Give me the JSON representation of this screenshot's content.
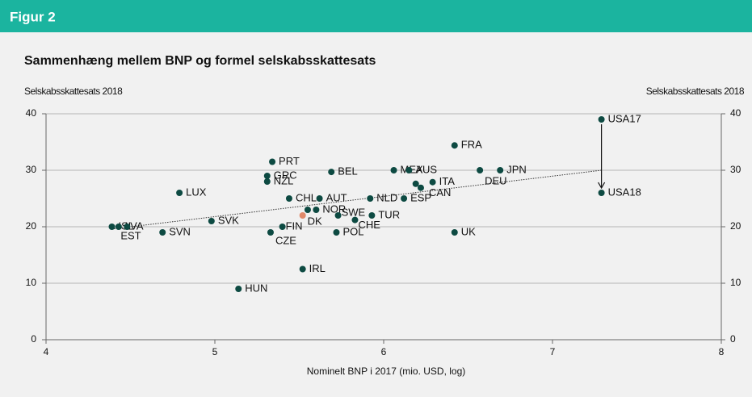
{
  "header": {
    "label": "Figur 2"
  },
  "chart_data": {
    "type": "scatter",
    "title": "Sammenhæng mellem BNP og formel selskabsskattesats",
    "y_label": "Selskabsskattesats 2018",
    "y2_label": "Selskabsskattesats 2018",
    "x_label": "Nominelt BNP i 2017 (mio. USD, log)",
    "xlim": [
      4,
      8
    ],
    "xticks": [
      4,
      5,
      6,
      7,
      8
    ],
    "ylim": [
      0,
      40
    ],
    "yticks": [
      0,
      10,
      20,
      30,
      40
    ],
    "y2lim": [
      0,
      40
    ],
    "y2ticks": [
      0,
      10,
      20,
      30,
      40
    ],
    "grid": true,
    "color": "#0d4a42",
    "labels": [
      "ISL",
      "LVA",
      "EST",
      "SVN",
      "SVK",
      "LUX",
      "HUN",
      "PRT",
      "GRC",
      "NZL",
      "CZE",
      "FIN",
      "CHL",
      "DK",
      "IRL",
      null,
      "NOR",
      "AUT",
      "BEL",
      "SWE",
      "POL",
      "CHE",
      "NLD",
      "TUR",
      "MEX",
      "AUS",
      "ESP",
      null,
      "CAN",
      "ITA",
      "FRA",
      "UK",
      "DEU",
      "JPN",
      "USA17",
      "USA18"
    ],
    "x": [
      4.39,
      4.43,
      4.48,
      4.69,
      4.98,
      4.79,
      5.14,
      5.34,
      5.31,
      5.31,
      5.33,
      5.4,
      5.44,
      5.52,
      5.52,
      5.55,
      5.6,
      5.62,
      5.69,
      5.73,
      5.72,
      5.83,
      5.92,
      5.93,
      6.06,
      6.15,
      6.12,
      6.19,
      6.22,
      6.29,
      6.42,
      6.42,
      6.57,
      6.69,
      7.29,
      7.29
    ],
    "y": [
      20,
      20,
      20,
      19,
      21,
      26,
      9,
      31.5,
      29,
      28,
      19,
      20,
      25,
      22,
      12.5,
      23,
      23,
      25,
      29.7,
      22,
      19,
      21.2,
      25,
      22,
      30,
      30,
      25,
      27.6,
      26.9,
      27.9,
      34.4,
      19,
      30,
      30,
      39,
      26
    ],
    "colors": [
      "#0d4a42",
      "#0d4a42",
      "#0d4a42",
      "#0d4a42",
      "#0d4a42",
      "#0d4a42",
      "#0d4a42",
      "#0d4a42",
      "#0d4a42",
      "#0d4a42",
      "#0d4a42",
      "#0d4a42",
      "#0d4a42",
      "#e0896a",
      "#0d4a42",
      "#0d4a42",
      "#0d4a42",
      "#0d4a42",
      "#0d4a42",
      "#0d4a42",
      "#0d4a42",
      "#0d4a42",
      "#0d4a42",
      "#0d4a42",
      "#0d4a42",
      "#0d4a42",
      "#0d4a42",
      "#0d4a42",
      "#0d4a42",
      "#0d4a42",
      "#0d4a42",
      "#0d4a42",
      "#0d4a42",
      "#0d4a42",
      "#0d4a42",
      "#0d4a42"
    ],
    "trendline": {
      "x": [
        4.39,
        7.29
      ],
      "y": [
        19.6,
        30
      ]
    }
  }
}
